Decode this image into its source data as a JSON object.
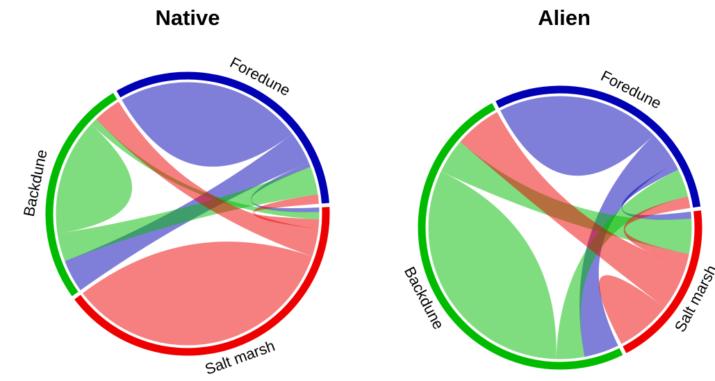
{
  "chart_data": [
    {
      "type": "chord",
      "title": "Native",
      "sectors": [
        {
          "name": "Foredune",
          "color": "#0000b4"
        },
        {
          "name": "Salt marsh",
          "color": "#ee0000"
        },
        {
          "name": "Backdune",
          "color": "#00bb00"
        }
      ],
      "flows": [
        {
          "from": 0,
          "to": 0,
          "value": 40
        },
        {
          "from": 0,
          "to": 2,
          "value": 14
        },
        {
          "from": 0,
          "to": 1,
          "value": 2
        },
        {
          "from": 2,
          "to": 0,
          "value": 12
        },
        {
          "from": 2,
          "to": 2,
          "value": 25
        },
        {
          "from": 2,
          "to": 1,
          "value": 3
        },
        {
          "from": 1,
          "to": 0,
          "value": 4
        },
        {
          "from": 1,
          "to": 2,
          "value": 12
        },
        {
          "from": 1,
          "to": 1,
          "value": 60
        }
      ]
    },
    {
      "type": "chord",
      "title": "Alien",
      "sectors": [
        {
          "name": "Foredune",
          "color": "#0000b4"
        },
        {
          "name": "Salt marsh",
          "color": "#ee0000"
        },
        {
          "name": "Backdune",
          "color": "#00bb00"
        }
      ],
      "flows": [
        {
          "from": 0,
          "to": 0,
          "value": 35
        },
        {
          "from": 0,
          "to": 2,
          "value": 15
        },
        {
          "from": 0,
          "to": 1,
          "value": 3
        },
        {
          "from": 2,
          "to": 0,
          "value": 12
        },
        {
          "from": 2,
          "to": 2,
          "value": 55
        },
        {
          "from": 2,
          "to": 1,
          "value": 15
        },
        {
          "from": 1,
          "to": 0,
          "value": 5
        },
        {
          "from": 1,
          "to": 2,
          "value": 20
        },
        {
          "from": 1,
          "to": 1,
          "value": 12
        }
      ]
    }
  ]
}
